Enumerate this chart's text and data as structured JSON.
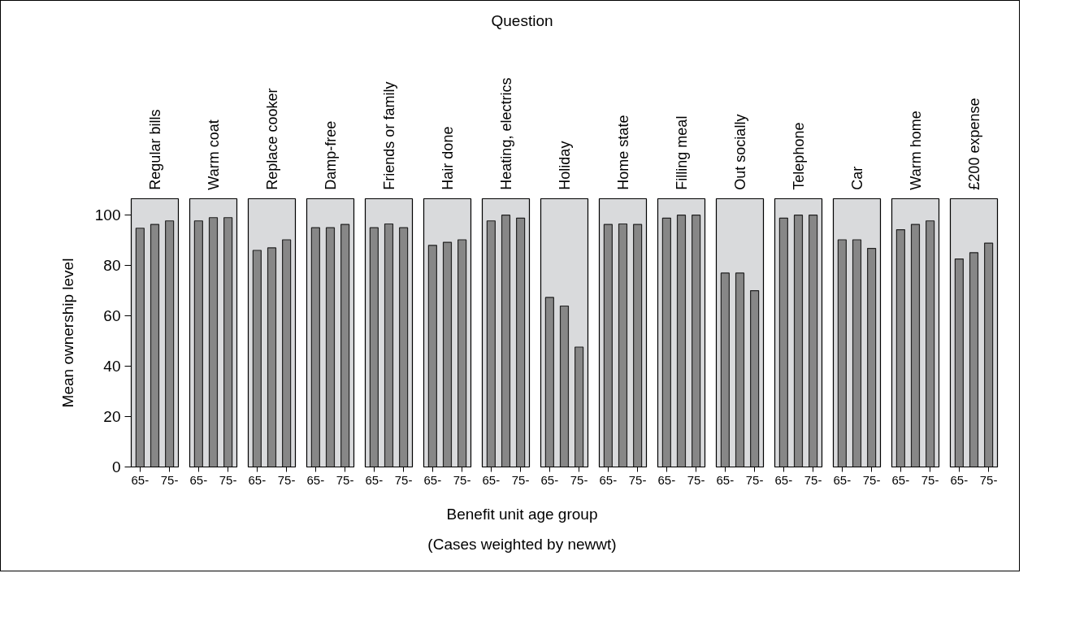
{
  "chart_data": [
    {
      "type": "bar",
      "title": "Regular bills",
      "categories": [
        "65-",
        null,
        "75-"
      ],
      "values": [
        94.8,
        96.3,
        97.7
      ],
      "color": "#878787",
      "ylim": [
        0,
        106.5
      ],
      "yticks": [
        0,
        20,
        40,
        60,
        80,
        100
      ],
      "ylabel": "Mean ownership level"
    },
    {
      "type": "bar",
      "title": "Warm coat",
      "categories": [
        "65-",
        null,
        "75-"
      ],
      "values": [
        97.7,
        99,
        99
      ],
      "color": "#878787",
      "ylim": [
        0,
        106.5
      ],
      "tick_labels": "x"
    },
    {
      "type": "bar",
      "title": "Replace cooker",
      "categories": [
        "65-",
        null,
        "75-"
      ],
      "values": [
        86,
        87,
        90.2
      ],
      "color": "#878787",
      "ylim": [
        0,
        106.5
      ],
      "tick_labels": "x"
    },
    {
      "type": "bar",
      "title": "Damp-free",
      "categories": [
        "65-",
        null,
        "75-"
      ],
      "values": [
        95,
        95,
        96.3
      ],
      "color": "#878787",
      "ylim": [
        0,
        106.5
      ],
      "tick_labels": "x"
    },
    {
      "type": "bar",
      "title": "Friends or family",
      "categories": [
        "65-",
        null,
        "75-"
      ],
      "values": [
        95,
        96.5,
        95
      ],
      "color": "#878787",
      "ylim": [
        0,
        106.5
      ],
      "tick_labels": "x"
    },
    {
      "type": "bar",
      "title": "Hair done",
      "categories": [
        "65-",
        null,
        "75-"
      ],
      "values": [
        88,
        89.2,
        90.2
      ],
      "color": "#878787",
      "ylim": [
        0,
        106.5
      ],
      "tick_labels": "x"
    },
    {
      "type": "bar",
      "title": "Heating, electrics",
      "categories": [
        "65-",
        null,
        "75-"
      ],
      "values": [
        97.7,
        100,
        98.8
      ],
      "color": "#878787",
      "ylim": [
        0,
        106.5
      ],
      "tick_labels": "x"
    },
    {
      "type": "bar",
      "title": "Holiday",
      "categories": [
        "65-",
        null,
        "75-"
      ],
      "values": [
        67.3,
        63.9,
        47.6
      ],
      "color": "#878787",
      "ylim": [
        0,
        106.5
      ],
      "tick_labels": "x",
      "xlabel": "Benefit unit age group",
      "annotations": [
        "Question",
        "(Cases weighted by newwt)"
      ]
    },
    {
      "type": "bar",
      "title": "Home state",
      "categories": [
        "65-",
        null,
        "75-"
      ],
      "values": [
        96.3,
        96.5,
        96.3
      ],
      "color": "#878787",
      "ylim": [
        0,
        106.5
      ],
      "tick_labels": "x"
    },
    {
      "type": "bar",
      "title": "Filling meal",
      "categories": [
        "65-",
        null,
        "75-"
      ],
      "values": [
        98.8,
        100,
        100
      ],
      "color": "#878787",
      "ylim": [
        0,
        106.5
      ],
      "tick_labels": "x"
    },
    {
      "type": "bar",
      "title": "Out socially",
      "categories": [
        "65-",
        null,
        "75-"
      ],
      "values": [
        77,
        77,
        70
      ],
      "color": "#878787",
      "ylim": [
        0,
        106.5
      ],
      "tick_labels": "x"
    },
    {
      "type": "bar",
      "title": "Telephone",
      "categories": [
        "65-",
        null,
        "75-"
      ],
      "values": [
        98.8,
        100,
        100
      ],
      "color": "#878787",
      "ylim": [
        0,
        106.5
      ],
      "tick_labels": "x"
    },
    {
      "type": "bar",
      "title": "Car",
      "categories": [
        "65-",
        null,
        "75-"
      ],
      "values": [
        90.2,
        90.2,
        86.8
      ],
      "color": "#878787",
      "ylim": [
        0,
        106.5
      ],
      "tick_labels": "x"
    },
    {
      "type": "bar",
      "title": "Warm home",
      "categories": [
        "65-",
        null,
        "75-"
      ],
      "values": [
        94.2,
        96.3,
        97.7
      ],
      "color": "#878787",
      "ylim": [
        0,
        106.5
      ],
      "tick_labels": "x"
    },
    {
      "type": "bar",
      "title": "£200 expense",
      "categories": [
        "65-",
        null,
        "75-"
      ],
      "values": [
        82.6,
        85.1,
        88.9
      ],
      "color": "#878787",
      "ylim": [
        0,
        106.5
      ],
      "tick_labels": "x"
    }
  ]
}
